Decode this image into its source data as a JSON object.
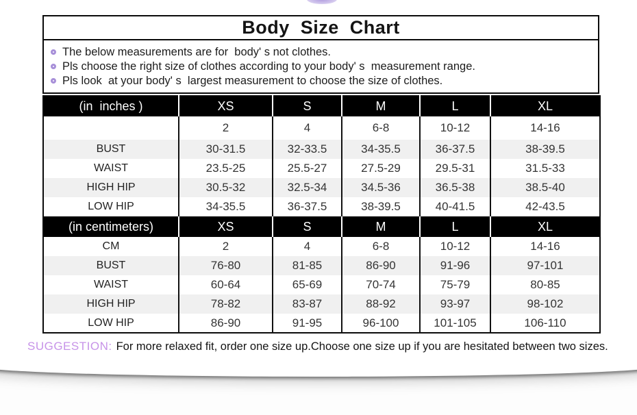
{
  "page": {
    "title": "Body  Size  Chart",
    "notes": [
      "The below measurements are for  body' s not clothes.",
      "Pls choose the right size of clothes according to your body' s  measurement range.",
      "Pls look  at your body' s  largest measurement to choose the size of clothes."
    ],
    "suggestion_label": "SUGGESTION:",
    "suggestion_text": "For more relaxed fit, order one size up.Choose one size up if you are hesitated between two sizes."
  },
  "colors": {
    "accent_bullet_purple": "#a78fd8",
    "suggestion_purple": "#c793e8",
    "header_bg": "#000000",
    "header_text": "#ffffff",
    "zebra_row_gray": "#f0f0f0",
    "border_black": "#0a0a0a"
  },
  "size_chart": {
    "columns": [
      "XS",
      "S",
      "M",
      "L",
      "XL"
    ],
    "sections": [
      {
        "unit_label": "(in  inches )",
        "rows": [
          {
            "label": "",
            "values": [
              "2",
              "4",
              "6-8",
              "10-12",
              "14-16"
            ]
          },
          {
            "label": "BUST",
            "values": [
              "30-31.5",
              "32-33.5",
              "34-35.5",
              "36-37.5",
              "38-39.5"
            ]
          },
          {
            "label": "WAIST",
            "values": [
              "23.5-25",
              "25.5-27",
              "27.5-29",
              "29.5-31",
              "31.5-33"
            ]
          },
          {
            "label": "HIGH HIP",
            "values": [
              "30.5-32",
              "32.5-34",
              "34.5-36",
              "36.5-38",
              "38.5-40"
            ]
          },
          {
            "label": "LOW HIP",
            "values": [
              "34-35.5",
              "36-37.5",
              "38-39.5",
              "40-41.5",
              "42-43.5"
            ]
          }
        ]
      },
      {
        "unit_label": "(in centimeters)",
        "rows": [
          {
            "label": "CM",
            "values": [
              "2",
              "4",
              "6-8",
              "10-12",
              "14-16"
            ]
          },
          {
            "label": "BUST",
            "values": [
              "76-80",
              "81-85",
              "86-90",
              "91-96",
              "97-101"
            ]
          },
          {
            "label": "WAIST",
            "values": [
              "60-64",
              "65-69",
              "70-74",
              "75-79",
              "80-85"
            ]
          },
          {
            "label": "HIGH HIP",
            "values": [
              "78-82",
              "83-87",
              "88-92",
              "93-97",
              "98-102"
            ]
          },
          {
            "label": "LOW HIP",
            "values": [
              "86-90",
              "91-95",
              "96-100",
              "101-105",
              "106-110"
            ]
          }
        ]
      }
    ]
  }
}
